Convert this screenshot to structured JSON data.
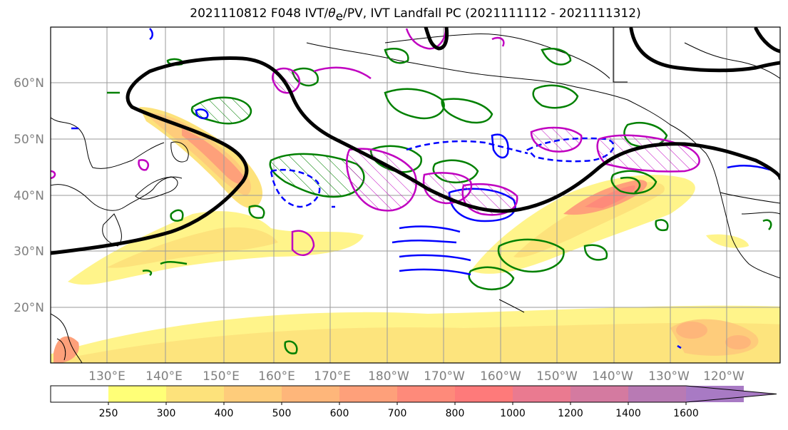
{
  "title": {
    "prefix": "2021110812 F048 IVT/",
    "theta": "θ",
    "theta_sub": "e",
    "suffix": "/PV, IVT Landfall PC (2021111112 - 2021111312)"
  },
  "lat_labels": [
    "60°N",
    "50°N",
    "40°N",
    "30°N",
    "20°N"
  ],
  "lon_labels": [
    "130°E",
    "140°E",
    "150°E",
    "160°E",
    "170°E",
    "180°W",
    "170°W",
    "160°W",
    "150°W",
    "140°W",
    "130°W",
    "120°W"
  ],
  "colorbar": {
    "ticks": [
      "250",
      "300",
      "400",
      "500",
      "600",
      "700",
      "800",
      "1000",
      "1200",
      "1400",
      "1600"
    ],
    "colors": [
      "#ffffff",
      "#ffff77",
      "#fde27b",
      "#fecc7b",
      "#feb67a",
      "#fea07a",
      "#fe8a7a",
      "#fe7a7a",
      "#ea7a90",
      "#d47aa0",
      "#b87ab4",
      "#a87ac4"
    ]
  },
  "legend_colors": {
    "ivt_shading": "#ffd27b",
    "pv_contour": "#008000",
    "theta_contour": "#0000ff",
    "landfall_pc": "#c000c0",
    "jet_line": "#000000"
  }
}
